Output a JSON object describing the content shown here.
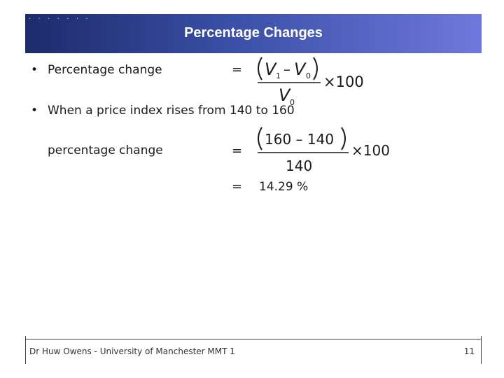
{
  "header": {
    "decoration": ". . . . . . .",
    "title": "Percentage Changes"
  },
  "bullets": [
    {
      "marker": "•",
      "text": "Percentage change"
    },
    {
      "marker": "•",
      "text": "When a price index rises from 140 to 160"
    }
  ],
  "example": {
    "label": "percentage change",
    "result": "14.29 %"
  },
  "equals_sign": "=",
  "formula_general": {
    "numerator_left": "V",
    "numerator_left_sub": "1",
    "minus": "–",
    "numerator_right": "V",
    "numerator_right_sub": "0",
    "denominator": "V",
    "denominator_sub": "0",
    "multiplier": "×100"
  },
  "formula_example": {
    "numerator": "160 – 140",
    "denominator": "140",
    "multiplier": "×100"
  },
  "footer": {
    "left": "Dr Huw Owens - University of Manchester MMT 1",
    "page_number": "11"
  }
}
